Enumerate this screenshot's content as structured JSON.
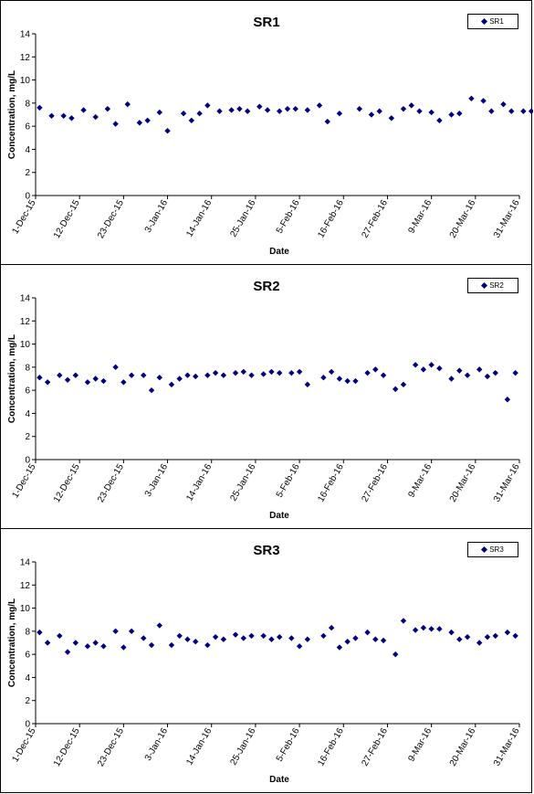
{
  "colors": {
    "marker": "#000080",
    "axis": "#000000",
    "background": "#ffffff"
  },
  "chart_data": [
    {
      "type": "scatter",
      "title": "SR1",
      "xlabel": "Date",
      "ylabel": "Concentration, mg/L",
      "ylim": [
        0,
        14
      ],
      "yticks": [
        0,
        2,
        4,
        6,
        8,
        10,
        12,
        14
      ],
      "xlim": [
        "2015-12-01",
        "2016-03-31"
      ],
      "xticks": [
        "1-Dec-15",
        "12-Dec-15",
        "23-Dec-15",
        "3-Jan-16",
        "14-Jan-16",
        "25-Jan-16",
        "5-Feb-16",
        "16-Feb-16",
        "27-Feb-16",
        "9-Mar-16",
        "20-Mar-16",
        "31-Mar-16"
      ],
      "grid": false,
      "legend_position": "top-right",
      "series": [
        {
          "name": "SR1",
          "x": [
            "2015-12-02",
            "2015-12-05",
            "2015-12-08",
            "2015-12-10",
            "2015-12-13",
            "2015-12-16",
            "2015-12-19",
            "2015-12-21",
            "2015-12-24",
            "2015-12-27",
            "2015-12-29",
            "2016-01-01",
            "2016-01-03",
            "2016-01-07",
            "2016-01-09",
            "2016-01-11",
            "2016-01-13",
            "2016-01-16",
            "2016-01-19",
            "2016-01-21",
            "2016-01-23",
            "2016-01-26",
            "2016-01-28",
            "2016-01-31",
            "2016-02-02",
            "2016-02-04",
            "2016-02-07",
            "2016-02-10",
            "2016-02-12",
            "2016-02-15",
            "2016-02-20",
            "2016-02-23",
            "2016-02-25",
            "2016-02-28",
            "2016-03-02",
            "2016-03-04",
            "2016-03-06",
            "2016-03-09",
            "2016-03-11",
            "2016-03-14",
            "2016-03-16",
            "2016-03-19",
            "2016-03-22",
            "2016-03-24",
            "2016-03-27",
            "2016-03-29",
            "2016-04-01",
            "2016-04-03"
          ],
          "y": [
            7.6,
            6.9,
            6.9,
            6.7,
            7.4,
            6.8,
            7.5,
            6.2,
            7.9,
            6.3,
            6.5,
            7.2,
            5.6,
            7.1,
            6.5,
            7.1,
            7.8,
            7.3,
            7.4,
            7.5,
            7.3,
            7.7,
            7.4,
            7.3,
            7.5,
            7.5,
            7.4,
            7.8,
            6.4,
            7.1,
            7.5,
            7.0,
            7.3,
            6.7,
            7.5,
            7.8,
            7.3,
            7.2,
            6.5,
            7.0,
            7.1,
            8.4,
            8.2,
            7.3,
            7.9,
            7.3,
            7.3,
            7.3
          ]
        }
      ]
    },
    {
      "type": "scatter",
      "title": "SR2",
      "xlabel": "Date",
      "ylabel": "Concentration, mg/L",
      "ylim": [
        0,
        14
      ],
      "yticks": [
        0,
        2,
        4,
        6,
        8,
        10,
        12,
        14
      ],
      "xlim": [
        "2015-12-01",
        "2016-03-31"
      ],
      "xticks": [
        "1-Dec-15",
        "12-Dec-15",
        "23-Dec-15",
        "3-Jan-16",
        "14-Jan-16",
        "25-Jan-16",
        "5-Feb-16",
        "16-Feb-16",
        "27-Feb-16",
        "9-Mar-16",
        "20-Mar-16",
        "31-Mar-16"
      ],
      "grid": false,
      "legend_position": "top-right",
      "series": [
        {
          "name": "SR2",
          "x": [
            "2015-12-02",
            "2015-12-04",
            "2015-12-07",
            "2015-12-09",
            "2015-12-11",
            "2015-12-14",
            "2015-12-16",
            "2015-12-18",
            "2015-12-21",
            "2015-12-23",
            "2015-12-25",
            "2015-12-28",
            "2015-12-30",
            "2016-01-01",
            "2016-01-04",
            "2016-01-06",
            "2016-01-08",
            "2016-01-10",
            "2016-01-13",
            "2016-01-15",
            "2016-01-17",
            "2016-01-20",
            "2016-01-22",
            "2016-01-24",
            "2016-01-27",
            "2016-01-29",
            "2016-01-31",
            "2016-02-03",
            "2016-02-05",
            "2016-02-07",
            "2016-02-11",
            "2016-02-13",
            "2016-02-15",
            "2016-02-17",
            "2016-02-19",
            "2016-02-22",
            "2016-02-24",
            "2016-02-26",
            "2016-02-29",
            "2016-03-02",
            "2016-03-05",
            "2016-03-07",
            "2016-03-09",
            "2016-03-11",
            "2016-03-14",
            "2016-03-16",
            "2016-03-18",
            "2016-03-21",
            "2016-03-23",
            "2016-03-25",
            "2016-03-28",
            "2016-03-30"
          ],
          "y": [
            7.1,
            6.7,
            7.3,
            6.9,
            7.3,
            6.7,
            7.0,
            6.8,
            8.0,
            6.7,
            7.3,
            7.3,
            6.0,
            7.1,
            6.5,
            7.0,
            7.3,
            7.2,
            7.3,
            7.5,
            7.3,
            7.5,
            7.6,
            7.3,
            7.4,
            7.6,
            7.5,
            7.5,
            7.6,
            6.5,
            7.1,
            7.6,
            7.0,
            6.8,
            6.8,
            7.5,
            7.8,
            7.3,
            6.1,
            6.5,
            8.2,
            7.8,
            8.2,
            7.9,
            7.0,
            7.7,
            7.3,
            7.8,
            7.2,
            7.5,
            5.2,
            7.5
          ]
        }
      ]
    },
    {
      "type": "scatter",
      "title": "SR3",
      "xlabel": "Date",
      "ylabel": "Concentration, mg/L",
      "ylim": [
        0,
        14
      ],
      "yticks": [
        0,
        2,
        4,
        6,
        8,
        10,
        12,
        14
      ],
      "xlim": [
        "2015-12-01",
        "2016-03-31"
      ],
      "xticks": [
        "1-Dec-15",
        "12-Dec-15",
        "23-Dec-15",
        "3-Jan-16",
        "14-Jan-16",
        "25-Jan-16",
        "5-Feb-16",
        "16-Feb-16",
        "27-Feb-16",
        "9-Mar-16",
        "20-Mar-16",
        "31-Mar-16"
      ],
      "grid": false,
      "legend_position": "top-right",
      "series": [
        {
          "name": "SR3",
          "x": [
            "2015-12-02",
            "2015-12-04",
            "2015-12-07",
            "2015-12-09",
            "2015-12-11",
            "2015-12-14",
            "2015-12-16",
            "2015-12-18",
            "2015-12-21",
            "2015-12-23",
            "2015-12-25",
            "2015-12-28",
            "2015-12-30",
            "2016-01-01",
            "2016-01-04",
            "2016-01-06",
            "2016-01-08",
            "2016-01-10",
            "2016-01-13",
            "2016-01-15",
            "2016-01-17",
            "2016-01-20",
            "2016-01-22",
            "2016-01-24",
            "2016-01-27",
            "2016-01-29",
            "2016-01-31",
            "2016-02-03",
            "2016-02-05",
            "2016-02-07",
            "2016-02-11",
            "2016-02-13",
            "2016-02-15",
            "2016-02-17",
            "2016-02-19",
            "2016-02-22",
            "2016-02-24",
            "2016-02-26",
            "2016-02-29",
            "2016-03-02",
            "2016-03-05",
            "2016-03-07",
            "2016-03-09",
            "2016-03-11",
            "2016-03-14",
            "2016-03-16",
            "2016-03-18",
            "2016-03-21",
            "2016-03-23",
            "2016-03-25",
            "2016-03-28",
            "2016-03-30"
          ],
          "y": [
            7.9,
            7.0,
            7.6,
            6.2,
            7.0,
            6.7,
            7.0,
            6.7,
            8.0,
            6.6,
            8.0,
            7.4,
            6.8,
            8.5,
            6.8,
            7.6,
            7.3,
            7.1,
            6.8,
            7.5,
            7.3,
            7.7,
            7.4,
            7.6,
            7.6,
            7.3,
            7.5,
            7.4,
            6.7,
            7.3,
            7.6,
            8.3,
            6.6,
            7.1,
            7.4,
            7.9,
            7.3,
            7.2,
            6.0,
            8.9,
            8.1,
            8.3,
            8.2,
            8.2,
            7.9,
            7.3,
            7.5,
            7.0,
            7.5,
            7.6,
            7.9,
            7.6
          ]
        }
      ]
    }
  ]
}
